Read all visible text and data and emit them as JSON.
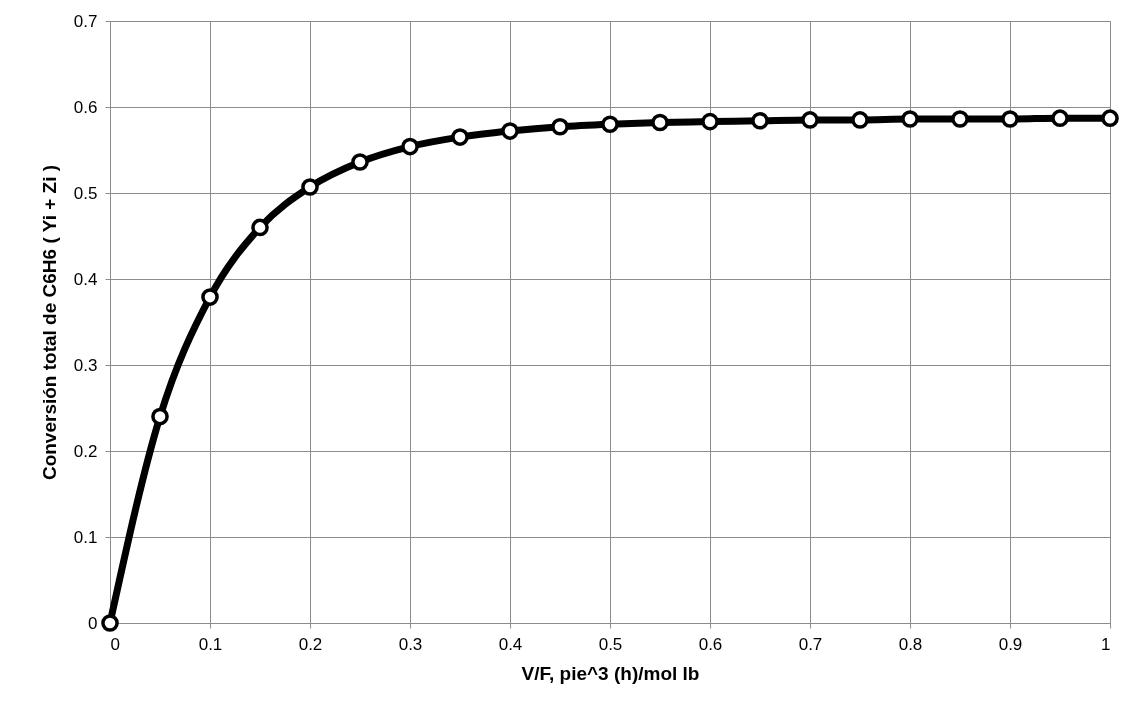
{
  "chart_data": {
    "type": "line",
    "xlabel": "V/F, pie^3 (h)/mol lb",
    "ylabel": "Conversión total de C6H6 ( Yi + Zi )",
    "x": [
      0,
      0.05,
      0.1,
      0.15,
      0.2,
      0.25,
      0.3,
      0.35,
      0.4,
      0.45,
      0.5,
      0.55,
      0.6,
      0.65,
      0.7,
      0.75,
      0.8,
      0.85,
      0.9,
      0.95,
      1
    ],
    "series": [
      {
        "color": "#000000",
        "values": [
          0,
          0.24,
          0.379,
          0.46,
          0.507,
          0.536,
          0.554,
          0.565,
          0.572,
          0.577,
          0.58,
          0.582,
          0.583,
          0.584,
          0.585,
          0.585,
          0.586,
          0.586,
          0.586,
          0.587,
          0.587
        ]
      }
    ],
    "xlim": [
      0,
      1
    ],
    "xticks": [
      0,
      0.1,
      0.2,
      0.3,
      0.4,
      0.5,
      0.6,
      0.7,
      0.8,
      0.9,
      1
    ],
    "ylim": [
      0,
      0.7
    ],
    "yticks": [
      0,
      0.1,
      0.2,
      0.3,
      0.4,
      0.5,
      0.6,
      0.7
    ],
    "grid": true,
    "marker": "circle",
    "line_style": "solid"
  }
}
